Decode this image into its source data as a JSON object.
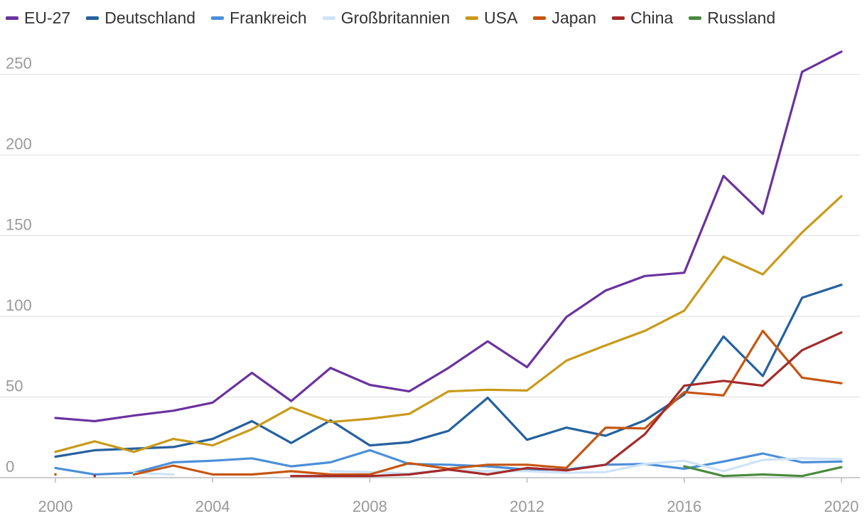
{
  "chart_data": {
    "type": "line",
    "x": [
      2000,
      2001,
      2002,
      2003,
      2004,
      2005,
      2006,
      2007,
      2008,
      2009,
      2010,
      2011,
      2012,
      2013,
      2014,
      2015,
      2016,
      2017,
      2018,
      2019,
      2020
    ],
    "ylim": [
      0,
      262
    ],
    "yticks": [
      0,
      50,
      100,
      150,
      200,
      250
    ],
    "xticks": [
      2000,
      2004,
      2008,
      2012,
      2016,
      2020
    ],
    "legend_position": "top-left",
    "grid": "horizontal",
    "series": [
      {
        "name": "EU-27",
        "color": "#6a329f",
        "values": [
          37,
          35,
          38.5,
          41.5,
          46.5,
          65,
          47.5,
          68,
          57.5,
          53.5,
          68,
          84.5,
          68.5,
          99.5,
          116,
          125,
          127,
          187,
          163.5,
          251.5,
          264
        ]
      },
      {
        "name": "Deutschland",
        "color": "#25619e",
        "values": [
          13,
          17,
          18,
          19,
          24,
          35,
          21.5,
          35.5,
          20,
          22,
          29,
          49.5,
          23.5,
          31,
          26,
          35.5,
          51.5,
          87.5,
          63,
          111.5,
          119.5
        ]
      },
      {
        "name": "Frankreich",
        "color": "#4b8fd8",
        "values": [
          6,
          2,
          3,
          9.5,
          10.5,
          12,
          7,
          9.5,
          17,
          8.5,
          8,
          7,
          5,
          5,
          8,
          8.5,
          5.5,
          10,
          15,
          9.5,
          10
        ]
      },
      {
        "name": "Großbritannien",
        "color": "#cde3f7",
        "values": [
          null,
          null,
          3,
          2,
          null,
          null,
          null,
          4,
          3.5,
          2.5,
          5,
          4,
          4,
          3,
          3.5,
          8.5,
          10.5,
          4,
          11,
          12,
          11.5
        ]
      },
      {
        "name": "USA",
        "color": "#c99a1a",
        "values": [
          16,
          22.5,
          16,
          24,
          20,
          30,
          43.5,
          34.5,
          36.5,
          39.5,
          53.5,
          54.5,
          54,
          72.5,
          82,
          91,
          103.5,
          137,
          126,
          152,
          174.5
        ]
      },
      {
        "name": "Japan",
        "color": "#c65511",
        "values": [
          2,
          null,
          2,
          7.5,
          2,
          2,
          4,
          2,
          2,
          9,
          5.5,
          8,
          8,
          6,
          31,
          30.5,
          53,
          51,
          91,
          62,
          58.5
        ]
      },
      {
        "name": "China",
        "color": "#a52a2a",
        "values": [
          null,
          1,
          null,
          null,
          null,
          null,
          1,
          1,
          1,
          2,
          5,
          2,
          6,
          4.5,
          8,
          27,
          57,
          60,
          57,
          79,
          90
        ]
      },
      {
        "name": "Russland",
        "color": "#4b8a3e",
        "values": [
          null,
          null,
          null,
          null,
          null,
          null,
          null,
          null,
          null,
          null,
          null,
          null,
          null,
          null,
          null,
          null,
          7,
          1,
          2,
          1,
          6.5
        ]
      }
    ]
  }
}
